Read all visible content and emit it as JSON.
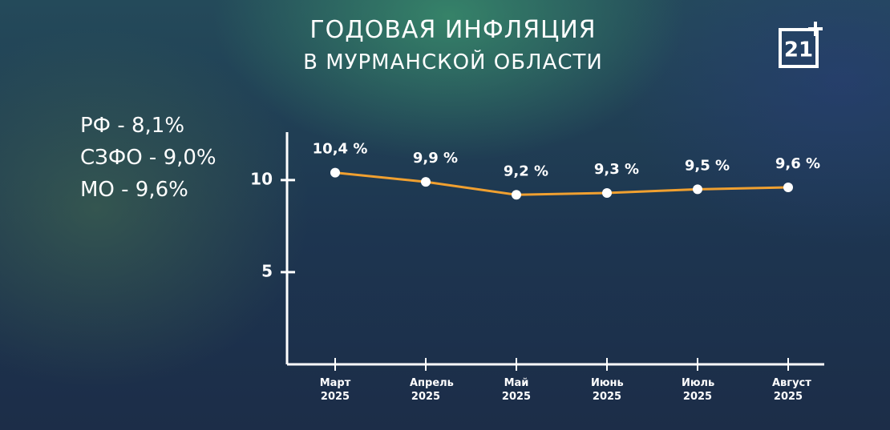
{
  "title": [
    "ГОДОВАЯ ИНФЛЯЦИЯ",
    "В МУРМАНСКОЙ ОБЛАСТИ"
  ],
  "notes": [
    "РФ - 8,1%",
    "СЗФО - 9,0%",
    "МО - 9,6%"
  ],
  "logo": "21",
  "chart_data": {
    "type": "line",
    "categories": [
      "Март 2025",
      "Апрель 2025",
      "Май 2025",
      "Июнь 2025",
      "Июль 2025",
      "Август 2025"
    ],
    "values": [
      10.4,
      9.9,
      9.2,
      9.3,
      9.5,
      9.6
    ],
    "value_labels": [
      "10,4 %",
      "9,9 %",
      "9,2 %",
      "9,3 %",
      "9,5 %",
      "9,6 %"
    ],
    "color": "#f0a030",
    "ylim": [
      0,
      12.6
    ],
    "yticks": [
      5,
      10
    ]
  }
}
